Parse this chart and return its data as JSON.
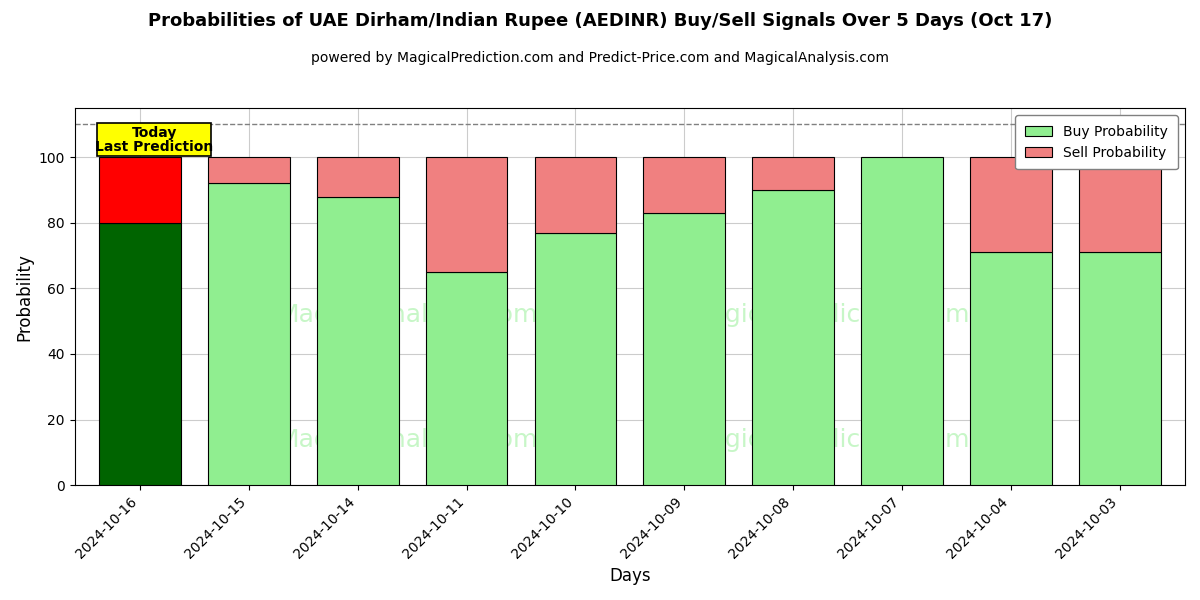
{
  "title": "Probabilities of UAE Dirham/Indian Rupee (AEDINR) Buy/Sell Signals Over 5 Days (Oct 17)",
  "subtitle": "powered by MagicalPrediction.com and Predict-Price.com and MagicalAnalysis.com",
  "xlabel": "Days",
  "ylabel": "Probability",
  "categories": [
    "2024-10-16",
    "2024-10-15",
    "2024-10-14",
    "2024-10-11",
    "2024-10-10",
    "2024-10-09",
    "2024-10-08",
    "2024-10-07",
    "2024-10-04",
    "2024-10-03"
  ],
  "buy_values": [
    80,
    92,
    88,
    65,
    77,
    83,
    90,
    100,
    71,
    71
  ],
  "sell_values": [
    20,
    8,
    12,
    35,
    23,
    17,
    10,
    0,
    29,
    29
  ],
  "buy_color_today": "#006400",
  "sell_color_today": "#FF0000",
  "buy_color_normal": "#90EE90",
  "sell_color_normal": "#F08080",
  "bar_edge_color": "#000000",
  "ylim": [
    0,
    115
  ],
  "yticks": [
    0,
    20,
    40,
    60,
    80,
    100
  ],
  "dashed_line_y": 110,
  "today_label_line1": "Today",
  "today_label_line2": "Last Prediction",
  "legend_buy": "Buy Probability",
  "legend_sell": "Sell Probability",
  "background_color": "#ffffff",
  "grid_color": "#cccccc",
  "bar_width": 0.75
}
